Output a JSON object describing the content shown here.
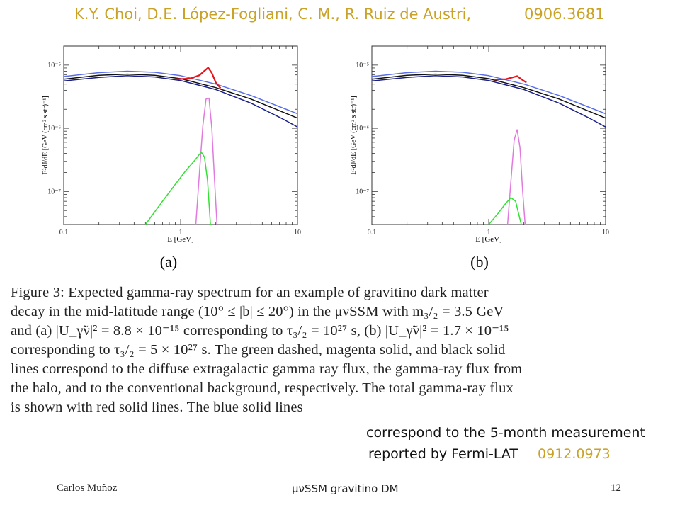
{
  "header": {
    "authors": "K.Y. Choi, D.E. López-Fogliani, C. M., R. Ruiz de Austri,",
    "arxiv": "0906.3681"
  },
  "plots": {
    "y_axis_label": "E²dJ/dE [GeV (cm² s str)⁻¹]",
    "x_axis_label": "E [GeV]",
    "x_ticks": [
      "0.1",
      "1",
      "10"
    ],
    "y_ticks": [
      "10⁻⁷",
      "10⁻⁶",
      "10⁻⁵"
    ],
    "panel_a_label": "(a)",
    "panel_b_label": "(b)",
    "colors": {
      "total": "#e8141c",
      "background": "#111111",
      "blue": "#5a6ee8",
      "navy": "#1a1f8c",
      "halo": "#e07adf",
      "extragalactic": "#33e033"
    }
  },
  "chart_data": [
    {
      "type": "line",
      "panel": "(a)",
      "xlabel": "E [GeV]",
      "ylabel": "E²dJ/dE [GeV (cm² s str)⁻¹]",
      "xscale": "log",
      "yscale": "log",
      "xlim": [
        0.1,
        10
      ],
      "ylim": [
        3e-08,
        2e-05
      ],
      "series": [
        {
          "name": "",
          "color": "#5a6ee8",
          "x": [
            0.1,
            0.2,
            0.35,
            0.6,
            1.0,
            2.0,
            4.0,
            7.0,
            10.0
          ],
          "y": [
            6.6e-06,
            7.6e-06,
            8e-06,
            7.7e-06,
            6.8e-06,
            5e-06,
            3.3e-06,
            2.2e-06,
            1.7e-06
          ]
        },
        {
          "name": "",
          "color": "#1a1f8c",
          "x": [
            0.1,
            0.2,
            0.35,
            0.6,
            1.0,
            2.0,
            4.0,
            7.0,
            10.0
          ],
          "y": [
            5.6e-06,
            6.4e-06,
            6.8e-06,
            6.5e-06,
            5.7e-06,
            4.1e-06,
            2.5e-06,
            1.5e-06,
            1.05e-06
          ]
        },
        {
          "name": "",
          "color": "#111111",
          "x": [
            0.1,
            0.2,
            0.35,
            0.6,
            1.0,
            2.0,
            4.0,
            7.0,
            10.0
          ],
          "y": [
            6e-06,
            6.9e-06,
            7.2e-06,
            6.9e-06,
            6.1e-06,
            4.4e-06,
            2.9e-06,
            1.9e-06,
            1.45e-06
          ]
        },
        {
          "name": "",
          "color": "#e8141c",
          "x": [
            0.9,
            1.2,
            1.45,
            1.6,
            1.72,
            1.85,
            2.0,
            2.2
          ],
          "y": [
            6e-06,
            6.1e-06,
            6.9e-06,
            8.1e-06,
            9.1e-06,
            7.5e-06,
            5.3e-06,
            4.3e-06
          ]
        },
        {
          "name": "",
          "color": "#e07adf",
          "x": [
            1.35,
            1.45,
            1.55,
            1.65,
            1.75,
            1.85,
            1.95,
            2.05
          ],
          "y": [
            3e-08,
            2e-07,
            1.1e-06,
            2.9e-06,
            3e-06,
            1e-06,
            1.5e-07,
            3e-08
          ]
        },
        {
          "name": "",
          "color": "#33e033",
          "x": [
            0.5,
            0.7,
            0.9,
            1.1,
            1.3,
            1.5,
            1.6,
            1.7,
            1.8
          ],
          "y": [
            3e-08,
            7e-08,
            1.3e-07,
            2.1e-07,
            3e-07,
            4.2e-07,
            3.5e-07,
            1.5e-07,
            3e-08
          ]
        }
      ]
    },
    {
      "type": "line",
      "panel": "(b)",
      "xlabel": "E [GeV]",
      "ylabel": "E²dJ/dE [GeV (cm² s str)⁻¹]",
      "xscale": "log",
      "yscale": "log",
      "xlim": [
        0.1,
        10
      ],
      "ylim": [
        3e-08,
        2e-05
      ],
      "series": [
        {
          "name": "",
          "color": "#5a6ee8",
          "x": [
            0.1,
            0.2,
            0.35,
            0.6,
            1.0,
            2.0,
            4.0,
            7.0,
            10.0
          ],
          "y": [
            6.6e-06,
            7.6e-06,
            8e-06,
            7.7e-06,
            6.8e-06,
            5e-06,
            3.3e-06,
            2.2e-06,
            1.7e-06
          ]
        },
        {
          "name": "",
          "color": "#1a1f8c",
          "x": [
            0.1,
            0.2,
            0.35,
            0.6,
            1.0,
            2.0,
            4.0,
            7.0,
            10.0
          ],
          "y": [
            5.6e-06,
            6.4e-06,
            6.8e-06,
            6.5e-06,
            5.7e-06,
            4.1e-06,
            2.5e-06,
            1.5e-06,
            1.05e-06
          ]
        },
        {
          "name": "",
          "color": "#111111",
          "x": [
            0.1,
            0.2,
            0.35,
            0.6,
            1.0,
            2.0,
            4.0,
            7.0,
            10.0
          ],
          "y": [
            6e-06,
            6.9e-06,
            7.2e-06,
            6.9e-06,
            6.1e-06,
            4.4e-06,
            2.9e-06,
            1.9e-06,
            1.45e-06
          ]
        },
        {
          "name": "",
          "color": "#e8141c",
          "x": [
            1.1,
            1.4,
            1.6,
            1.75,
            1.9,
            2.1
          ],
          "y": [
            5.9e-06,
            6e-06,
            6.4e-06,
            6.7e-06,
            6e-06,
            5.3e-06
          ]
        },
        {
          "name": "",
          "color": "#e07adf",
          "x": [
            1.45,
            1.55,
            1.65,
            1.75,
            1.85,
            1.95,
            2.05
          ],
          "y": [
            3e-08,
            1.5e-07,
            6.5e-07,
            9.5e-07,
            5e-07,
            1e-07,
            3e-08
          ]
        },
        {
          "name": "",
          "color": "#33e033",
          "x": [
            1.0,
            1.2,
            1.4,
            1.55,
            1.7,
            1.8,
            1.9
          ],
          "y": [
            3e-08,
            4.5e-08,
            6.5e-08,
            8e-08,
            7e-08,
            4.5e-08,
            3e-08
          ]
        }
      ]
    }
  ],
  "caption": {
    "line1": "Figure 3:  Expected gamma-ray spectrum for an example of gravitino dark matter",
    "line2": "decay in the mid-latitude range (10° ≤ |b| ≤ 20°) in the μνSSM with m₃/₂ = 3.5 GeV",
    "line3": "and (a) |U_γ̃ν|² = 8.8 × 10⁻¹⁵ corresponding to τ₃/₂ = 10²⁷ s, (b) |U_γ̃ν|² = 1.7 × 10⁻¹⁵",
    "line4": "corresponding to τ₃/₂ = 5 × 10²⁷ s.  The green dashed, magenta solid, and black solid",
    "line5": "lines correspond to the diffuse extragalactic gamma ray flux, the gamma-ray flux from",
    "line6": "the halo, and to the conventional background, respectively.  The total gamma-ray flux",
    "line7": "is shown with red solid lines.  The blue solid lines"
  },
  "overlay": {
    "line1": "correspond to the 5-month measurement",
    "line2": "reported by Fermi-LAT",
    "ref": "0912.0973"
  },
  "footer": {
    "author": "Carlos Muñoz",
    "title": "μνSSM gravitino DM",
    "page": "12"
  }
}
